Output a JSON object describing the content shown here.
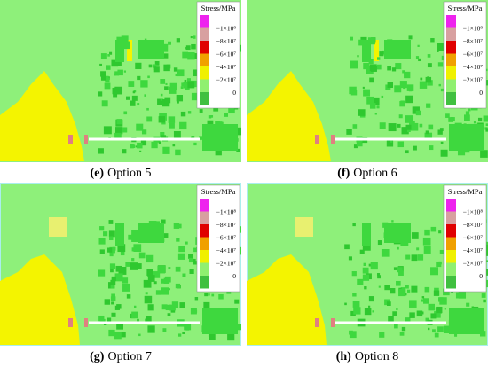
{
  "legend": {
    "title": "Stress/MPa",
    "colors": [
      "#ee22ee",
      "#d8a0a0",
      "#e00000",
      "#f0a000",
      "#f0f000",
      "#90f070",
      "#40c040"
    ],
    "labels": [
      "−1×10⁸",
      "−8×10⁷",
      "−6×10⁷",
      "−4×10⁷",
      "−2×10⁷",
      "0"
    ]
  },
  "panels": [
    {
      "letter": "(e)",
      "label": "Option 5"
    },
    {
      "letter": "(f)",
      "label": "Option 6"
    },
    {
      "letter": "(g)",
      "label": "Option 7"
    },
    {
      "letter": "(h)",
      "label": "Option 8"
    }
  ]
}
